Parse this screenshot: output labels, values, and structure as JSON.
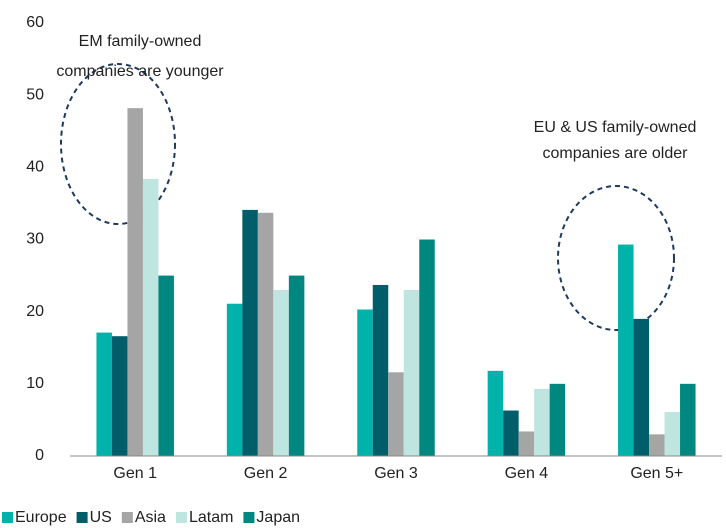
{
  "chart_data": {
    "type": "bar",
    "categories": [
      "Gen 1",
      "Gen 2",
      "Gen 3",
      "Gen 4",
      "Gen 5+"
    ],
    "series": [
      {
        "name": "Europe",
        "color": "#00b3aa",
        "values": [
          17.1,
          21.1,
          20.3,
          11.8,
          29.3
        ]
      },
      {
        "name": "US",
        "color": "#005e6b",
        "values": [
          16.6,
          34.1,
          23.7,
          6.3,
          19
        ]
      },
      {
        "name": "Asia",
        "color": "#a5a5a5",
        "values": [
          48.2,
          33.7,
          11.6,
          3.4,
          3
        ]
      },
      {
        "name": "Latam",
        "color": "#bfe5e1",
        "values": [
          38.4,
          23,
          23,
          9.3,
          6.1
        ]
      },
      {
        "name": "Japan",
        "color": "#00877f",
        "values": [
          25,
          25,
          30,
          10,
          10
        ]
      }
    ],
    "ylim": [
      0,
      60
    ],
    "yticks": [
      0,
      10,
      20,
      30,
      40,
      50,
      60
    ],
    "grid": false,
    "legend": "bottom",
    "annotations": [
      [
        "EM family-owned",
        "companies are younger"
      ],
      [
        "EU & US  family-owned",
        "companies are older"
      ]
    ]
  }
}
